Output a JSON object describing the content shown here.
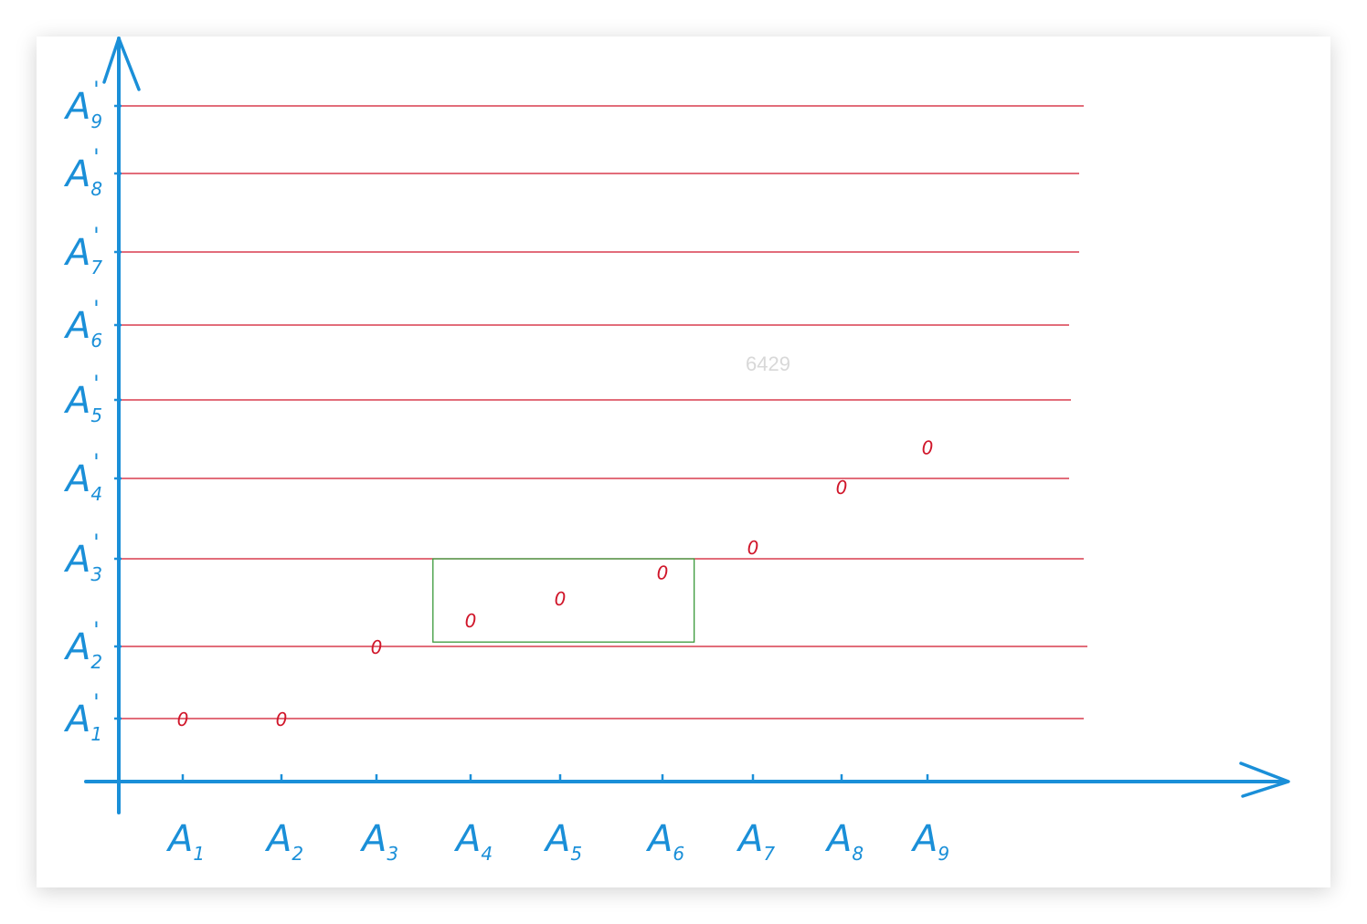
{
  "watermark": "6429",
  "colors": {
    "axis": "#1a8fd8",
    "row_line": "#d0162a",
    "point": "#d0162a",
    "highlight_box": "#3a9a3a",
    "background": "#ffffff"
  },
  "diagram": {
    "x_labels": [
      {
        "base": "A",
        "sub": "1"
      },
      {
        "base": "A",
        "sub": "2"
      },
      {
        "base": "A",
        "sub": "3"
      },
      {
        "base": "A",
        "sub": "4"
      },
      {
        "base": "A",
        "sub": "5"
      },
      {
        "base": "A",
        "sub": "6"
      },
      {
        "base": "A",
        "sub": "7"
      },
      {
        "base": "A",
        "sub": "8"
      },
      {
        "base": "A",
        "sub": "9"
      }
    ],
    "y_labels": [
      {
        "base": "A",
        "sub": "1",
        "prime": "'"
      },
      {
        "base": "A",
        "sub": "2",
        "prime": "'"
      },
      {
        "base": "A",
        "sub": "3",
        "prime": "'"
      },
      {
        "base": "A",
        "sub": "4",
        "prime": "'"
      },
      {
        "base": "A",
        "sub": "5",
        "prime": "'"
      },
      {
        "base": "A",
        "sub": "6",
        "prime": "'"
      },
      {
        "base": "A",
        "sub": "7",
        "prime": "'"
      },
      {
        "base": "A",
        "sub": "8",
        "prime": "'"
      },
      {
        "base": "A",
        "sub": "9",
        "prime": "'"
      }
    ],
    "point_marker": "0",
    "points": [
      {
        "x": 1,
        "y": 1.0
      },
      {
        "x": 2,
        "y": 1.0
      },
      {
        "x": 3,
        "y": 2.0
      },
      {
        "x": 4,
        "y": 2.3
      },
      {
        "x": 5,
        "y": 2.55
      },
      {
        "x": 6,
        "y": 2.85
      },
      {
        "x": 7,
        "y": 3.15
      },
      {
        "x": 8,
        "y": 3.9
      },
      {
        "x": 9,
        "y": 4.4
      }
    ],
    "highlight": {
      "x_from": 3.6,
      "x_to": 6.35,
      "y_from": 2.05,
      "y_to": 3.0
    }
  }
}
